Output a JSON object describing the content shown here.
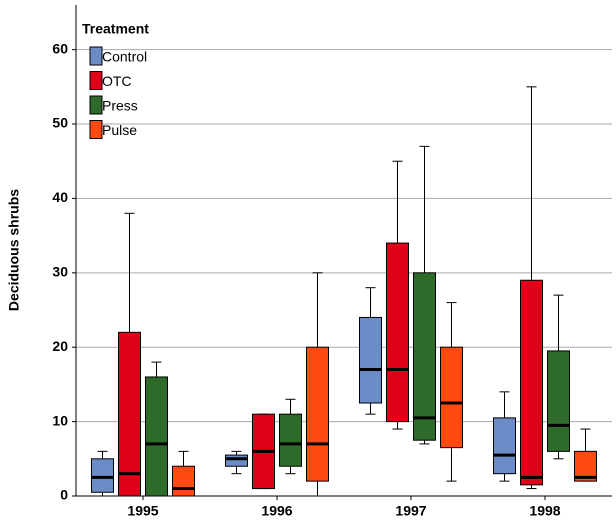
{
  "chart_data": {
    "type": "box",
    "y_label": "Deciduous shrubs",
    "legend_title": "Treatment",
    "legend": "upper left",
    "grid": true,
    "categories": [
      "1995",
      "1996",
      "1997",
      "1998"
    ],
    "ylim": [
      0,
      66
    ],
    "yticks": [
      0,
      10,
      20,
      30,
      40,
      50,
      60
    ],
    "series": [
      {
        "name": "Control",
        "color": "#6b8cc7",
        "values": [
          {
            "min": 0,
            "q1": 0.5,
            "median": 2.5,
            "q3": 5,
            "max": 6
          },
          {
            "min": 3,
            "q1": 4,
            "median": 5,
            "q3": 5.5,
            "max": 6
          },
          {
            "min": 11,
            "q1": 12.5,
            "median": 17,
            "q3": 24,
            "max": 28
          },
          {
            "min": 2,
            "q1": 3,
            "median": 5.5,
            "q3": 10.5,
            "max": 14
          }
        ]
      },
      {
        "name": "OTC",
        "color": "#e0001a",
        "values": [
          {
            "min": 0,
            "q1": 0,
            "median": 3,
            "q3": 22,
            "max": 38
          },
          {
            "min": 1,
            "q1": 1,
            "median": 6,
            "q3": 11,
            "max": 11
          },
          {
            "min": 9,
            "q1": 10,
            "median": 17,
            "q3": 34,
            "max": 45
          },
          {
            "min": 1,
            "q1": 1.5,
            "median": 2.5,
            "q3": 29,
            "max": 55
          }
        ]
      },
      {
        "name": "Press",
        "color": "#2e6b2a",
        "values": [
          {
            "min": 0,
            "q1": 0,
            "median": 7,
            "q3": 16,
            "max": 18
          },
          {
            "min": 3,
            "q1": 4,
            "median": 7,
            "q3": 11,
            "max": 13
          },
          {
            "min": 7,
            "q1": 7.5,
            "median": 10.5,
            "q3": 30,
            "max": 47
          },
          {
            "min": 5,
            "q1": 6,
            "median": 9.5,
            "q3": 19.5,
            "max": 27
          }
        ]
      },
      {
        "name": "Pulse",
        "color": "#ff4b12",
        "values": [
          {
            "min": 0,
            "q1": 0,
            "median": 1,
            "q3": 4,
            "max": 6
          },
          {
            "min": 0,
            "q1": 2,
            "median": 7,
            "q3": 20,
            "max": 30
          },
          {
            "min": 2,
            "q1": 6.5,
            "median": 12.5,
            "q3": 20,
            "max": 26
          },
          {
            "min": 2,
            "q1": 2,
            "median": 2.5,
            "q3": 6,
            "max": 9
          }
        ]
      }
    ]
  }
}
